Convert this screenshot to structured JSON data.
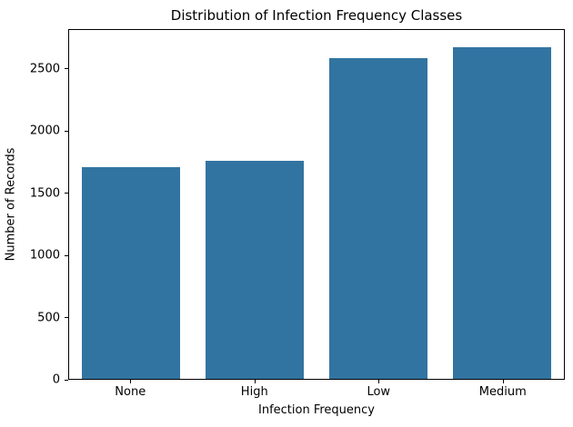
{
  "chart_data": {
    "type": "bar",
    "title": "Distribution of Infection Frequency Classes",
    "xlabel": "Infection Frequency",
    "ylabel": "Number of Records",
    "categories": [
      "None",
      "High",
      "Low",
      "Medium"
    ],
    "values": [
      1710,
      1760,
      2590,
      2680
    ],
    "yticks": [
      0,
      500,
      1000,
      1500,
      2000,
      2500
    ],
    "ylim": [
      0,
      2820
    ],
    "bar_color": "#3274a1",
    "spine_color": "#000000",
    "background_color": "#ffffff",
    "grid": false,
    "legend_position": "none"
  }
}
